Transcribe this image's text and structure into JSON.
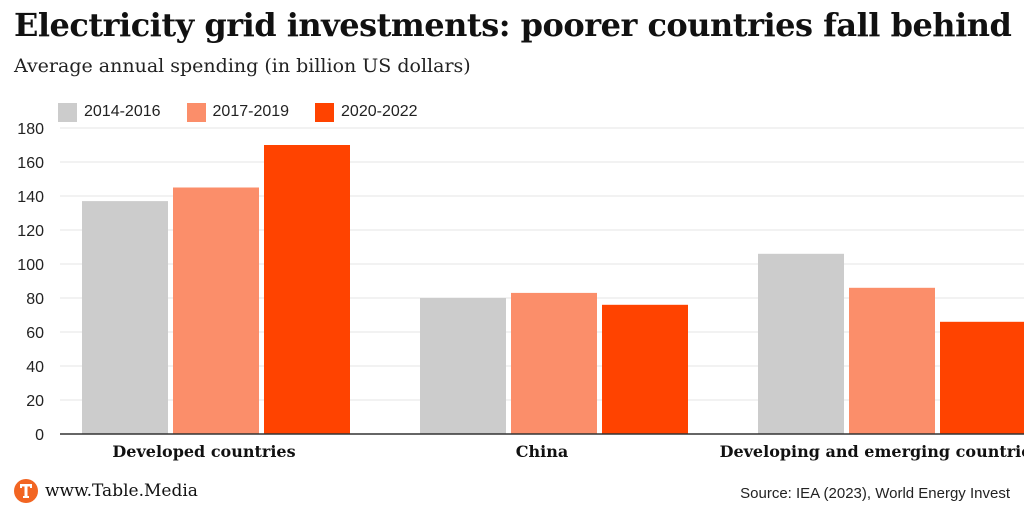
{
  "header": {
    "title": "Electricity grid investments: poorer countries fall behind",
    "subtitle": "Average annual spending (in billion US dollars)"
  },
  "footer": {
    "logo_text": "www.Table.Media",
    "logo_letter": "T",
    "logo_icon": "table-media-logo-icon",
    "source": "Source: IEA (2023), World Energy Invest"
  },
  "colors": {
    "series": [
      "#cccccc",
      "#fb8e6a",
      "#ff4300"
    ],
    "grid": "#e6e6e6",
    "axis": "#333333",
    "brand": "#f26522"
  },
  "chart_data": {
    "type": "bar",
    "title": "Electricity grid investments: poorer countries fall behind",
    "subtitle": "Average annual spending (in billion US dollars)",
    "xlabel": "",
    "ylabel": "",
    "categories": [
      "Developed countries",
      "China",
      "Developing and emerging countries"
    ],
    "series": [
      {
        "name": "2014-2016",
        "values": [
          137,
          80,
          106
        ]
      },
      {
        "name": "2017-2019",
        "values": [
          145,
          83,
          86
        ]
      },
      {
        "name": "2020-2022",
        "values": [
          170,
          76,
          66
        ]
      }
    ],
    "ylim": [
      0,
      180
    ],
    "yticks": [
      0,
      20,
      40,
      60,
      80,
      100,
      120,
      140,
      160,
      180
    ],
    "grid": true,
    "legend": "top-left"
  }
}
